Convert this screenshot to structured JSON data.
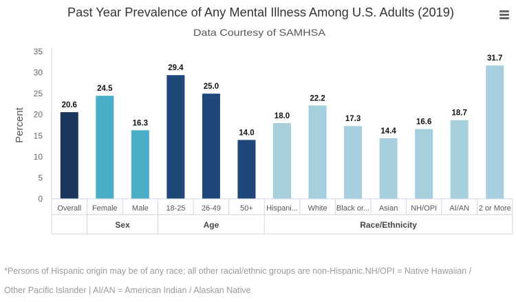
{
  "header": {
    "title": "Past Year Prevalence of Any Mental Illness Among U.S. Adults (2019)",
    "subtitle": "Data Courtesy of SAMHSA",
    "menu_icon": "hamburger-menu-icon"
  },
  "chart_data": {
    "type": "bar",
    "title": "Past Year Prevalence of Any Mental Illness Among U.S. Adults (2019)",
    "subtitle": "Data Courtesy of SAMHSA",
    "ylabel": "Percent",
    "xlabel": "",
    "ylim": [
      0,
      35
    ],
    "yticks": [
      "0",
      "5",
      "10",
      "15",
      "20",
      "25",
      "30",
      "35"
    ],
    "grid": false,
    "categories": [
      "Overall",
      "Female",
      "Male",
      "18-25",
      "26-49",
      "50+",
      "Hispani...",
      "White",
      "Black or...",
      "Asian",
      "NH/OPI",
      "AI/AN",
      "2 or More"
    ],
    "values": [
      20.6,
      24.5,
      16.3,
      29.4,
      25.0,
      14.0,
      18.0,
      22.2,
      17.3,
      14.4,
      16.6,
      18.7,
      31.7
    ],
    "data_labels": [
      "20.6",
      "24.5",
      "16.3",
      "29.4",
      "25.0",
      "14.0",
      "18.0",
      "22.2",
      "17.3",
      "14.4",
      "16.6",
      "18.7",
      "31.7"
    ],
    "groups": [
      {
        "label": "",
        "count": 1,
        "color": "#1b365d"
      },
      {
        "label": "Sex",
        "count": 2,
        "color": "#4aaec8"
      },
      {
        "label": "Age",
        "count": 3,
        "color": "#1f477a"
      },
      {
        "label": "Race/Ethnicity",
        "count": 7,
        "color": "#a6cfdd"
      }
    ]
  },
  "footnote": {
    "line1": "*Persons of Hispanic origin may be of any race; all other racial/ethnic groups are non-Hispanic.NH/OPI = Native Hawaiian /",
    "line2": "Other Pacific Islander | AI/AN = American Indian / Alaskan Native"
  }
}
